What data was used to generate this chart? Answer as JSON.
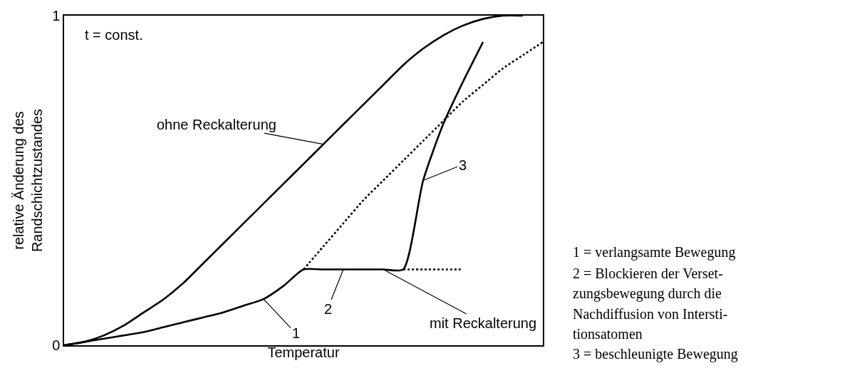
{
  "chart_data": {
    "type": "line",
    "xlabel": "Temperatur",
    "ylabel": "relative Änderung des\nRandschichtzustandes",
    "categories": [
      null,
      null,
      null,
      null,
      null,
      null,
      null,
      null,
      null,
      null,
      null,
      null,
      null,
      null,
      null,
      null,
      null,
      null,
      null,
      null,
      null,
      null,
      null,
      null,
      null
    ],
    "ylim": [
      0,
      1
    ],
    "yticks": [
      0,
      1
    ],
    "grid": false,
    "legend": false,
    "marker": "none",
    "tick_labels": "y",
    "series": [
      {
        "name": "ohne Reckalterung",
        "color": "#000000",
        "line_style": "solid",
        "values": [
          0,
          0.01,
          0.03,
          0.06,
          0.1,
          0.14,
          0.19,
          0.25,
          0.31,
          0.37,
          0.43,
          0.49,
          0.55,
          0.61,
          0.67,
          0.73,
          0.79,
          0.85,
          0.9,
          0.94,
          0.97,
          0.99,
          1,
          1,
          null
        ]
      },
      {
        "name": "mit Reckalterung",
        "color": "#000000",
        "line_style": "solid",
        "values": [
          0,
          0.01,
          0.02,
          0.03,
          0.04,
          0.055,
          0.07,
          0.085,
          0.1,
          0.12,
          0.14,
          0.18,
          0.23,
          0.23,
          0.23,
          0.23,
          0.23,
          0.23,
          0.5,
          0.67,
          0.8,
          0.92,
          null,
          null,
          null
        ]
      },
      {
        "color": "#000000",
        "line_style": "dotted",
        "values": [
          null,
          null,
          null,
          null,
          null,
          null,
          null,
          null,
          null,
          null,
          null,
          null,
          null,
          null,
          null,
          null,
          null,
          0.23,
          0.23,
          0.23,
          0.23,
          null,
          null,
          null,
          null
        ]
      },
      {
        "color": "#000000",
        "line_style": "dotted",
        "values": [
          null,
          null,
          null,
          null,
          null,
          null,
          null,
          null,
          null,
          null,
          null,
          null,
          0.23,
          0.3,
          0.37,
          0.44,
          0.5,
          0.56,
          0.62,
          0.68,
          0.74,
          0.79,
          0.84,
          0.88,
          0.92
        ]
      }
    ],
    "annotations": [
      "t = const.",
      "1",
      "2",
      "3",
      "1 = verlangsamte Bewegung",
      "2 = Blockieren der Verset-\nzungsbewegung durch die\nNachdiffusion von Intersti-\ntionsatomen",
      "3 = beschleunigte Bewegung"
    ]
  }
}
